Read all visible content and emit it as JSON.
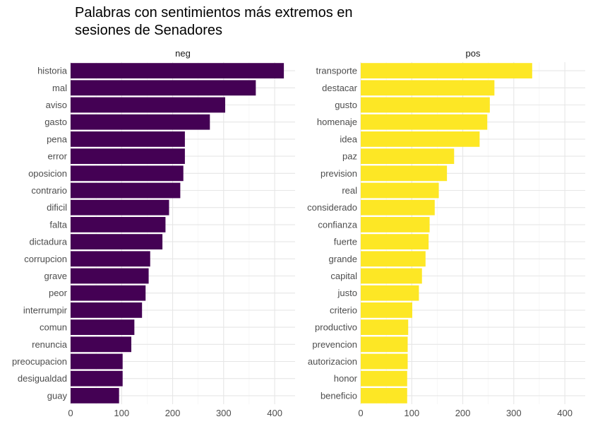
{
  "chart_data": {
    "type": "bar",
    "orientation": "horizontal",
    "title_lines": [
      "Palabras con sentimientos más extremos en",
      "sesiones de Senadores"
    ],
    "xlim": [
      0,
      440
    ],
    "x_ticks": [
      0,
      100,
      200,
      300,
      400
    ],
    "grid": true,
    "panels": [
      {
        "strip": "neg",
        "color": "#440154",
        "categories": [
          "historia",
          "mal",
          "aviso",
          "gasto",
          "pena",
          "error",
          "oposicion",
          "contrario",
          "dificil",
          "falta",
          "dictadura",
          "corrupcion",
          "grave",
          "peor",
          "interrumpir",
          "comun",
          "renuncia",
          "preocupacion",
          "desigualdad",
          "guay"
        ],
        "values": [
          418,
          363,
          303,
          273,
          224,
          224,
          221,
          215,
          193,
          186,
          180,
          156,
          153,
          147,
          140,
          125,
          119,
          102,
          102,
          95
        ]
      },
      {
        "strip": "pos",
        "color": "#FDE725",
        "categories": [
          "transporte",
          "destacar",
          "gusto",
          "homenaje",
          "idea",
          "paz",
          "prevision",
          "real",
          "considerado",
          "confianza",
          "fuerte",
          "grande",
          "capital",
          "justo",
          "criterio",
          "productivo",
          "prevencion",
          "autorizacion",
          "honor",
          "beneficio"
        ],
        "values": [
          336,
          262,
          253,
          248,
          233,
          183,
          169,
          153,
          145,
          135,
          133,
          127,
          120,
          114,
          101,
          93,
          92,
          92,
          91,
          91
        ]
      }
    ]
  }
}
